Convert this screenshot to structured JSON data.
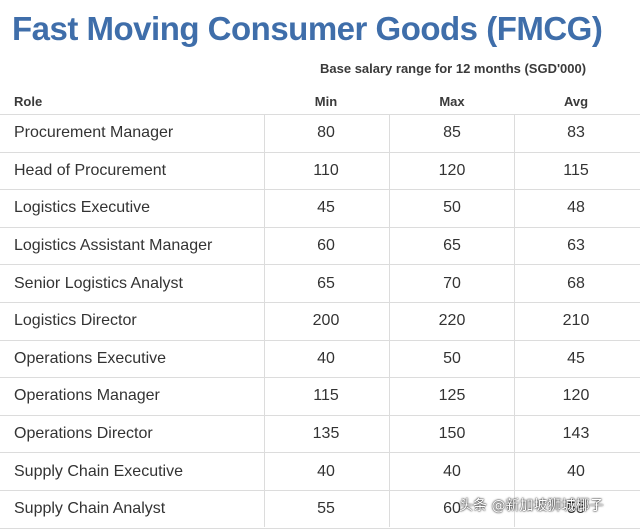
{
  "title": "Fast Moving Consumer Goods (FMCG)",
  "subtitle": "Base salary range for 12 months (SGD'000)",
  "columns": {
    "role": "Role",
    "min": "Min",
    "max": "Max",
    "avg": "Avg"
  },
  "rows": [
    {
      "role": "Procurement Manager",
      "min": "80",
      "max": "85",
      "avg": "83"
    },
    {
      "role": "Head of Procurement",
      "min": "110",
      "max": "120",
      "avg": "115"
    },
    {
      "role": "Logistics Executive",
      "min": "45",
      "max": "50",
      "avg": "48"
    },
    {
      "role": "Logistics Assistant Manager",
      "min": "60",
      "max": "65",
      "avg": "63"
    },
    {
      "role": "Senior Logistics Analyst",
      "min": "65",
      "max": "70",
      "avg": "68"
    },
    {
      "role": "Logistics Director",
      "min": "200",
      "max": "220",
      "avg": "210"
    },
    {
      "role": "Operations Executive",
      "min": "40",
      "max": "50",
      "avg": "45"
    },
    {
      "role": "Operations Manager",
      "min": "115",
      "max": "125",
      "avg": "120"
    },
    {
      "role": "Operations Director",
      "min": "135",
      "max": "150",
      "avg": "143"
    },
    {
      "role": "Supply Chain Executive",
      "min": "40",
      "max": "40",
      "avg": "40"
    },
    {
      "role": "Supply Chain Analyst",
      "min": "55",
      "max": "60",
      "avg": "58"
    }
  ],
  "watermark": "头条 @新加坡狮城椰子"
}
